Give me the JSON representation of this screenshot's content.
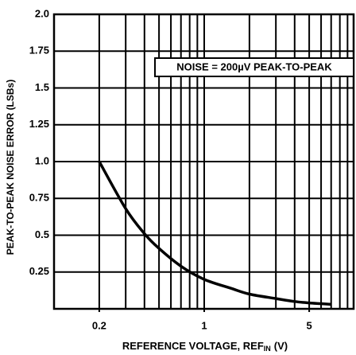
{
  "chart_data": {
    "type": "line",
    "xlabel": [
      "REFERENCE VOLTAGE, REF",
      "IN",
      "(V)"
    ],
    "ylabel": "PEAK-TO-PEAK NOISE ERROR (LSBs)",
    "annotation": "NOISE = 200µV PEAK-TO-PEAK",
    "xlog": true,
    "xlim": [
      0.1,
      10
    ],
    "xticks": [
      0.2,
      1,
      5
    ],
    "xgrid": [
      0.2,
      0.3,
      0.4,
      0.5,
      0.6,
      0.7,
      0.8,
      0.9,
      1,
      2,
      3,
      4,
      5,
      6,
      7,
      8,
      9
    ],
    "ylim": [
      0,
      2
    ],
    "yticks": [
      0.25,
      0.5,
      0.75,
      {
        "value": 1,
        "label": "1.0"
      },
      1.25,
      1.5,
      1.75,
      {
        "value": 2,
        "label": "2.0"
      }
    ],
    "grid": true,
    "series": [
      {
        "color": "#000000",
        "x": [
          0.2,
          0.3,
          0.4,
          0.5,
          0.7,
          1,
          1.5,
          2,
          3,
          4,
          5,
          6,
          7
        ],
        "values": [
          1.0,
          0.68,
          0.51,
          0.41,
          0.29,
          0.2,
          0.14,
          0.1,
          0.07,
          0.05,
          0.04,
          0.035,
          0.03
        ]
      }
    ]
  }
}
